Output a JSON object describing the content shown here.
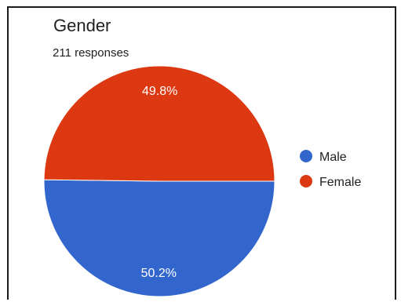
{
  "title": "Gender",
  "subtitle": "211 responses",
  "chart_data": {
    "type": "pie",
    "title": "Gender",
    "subtitle": "211 responses",
    "slices": [
      {
        "name": "Male",
        "value": 50.2,
        "label": "50.2%",
        "color": "#3366cc"
      },
      {
        "name": "Female",
        "value": 49.8,
        "label": "49.8%",
        "color": "#dc3912"
      }
    ],
    "legend": {
      "placement": "right",
      "entries": [
        "Male",
        "Female"
      ]
    },
    "start": "3 o'clock",
    "direction": "clockwise"
  }
}
